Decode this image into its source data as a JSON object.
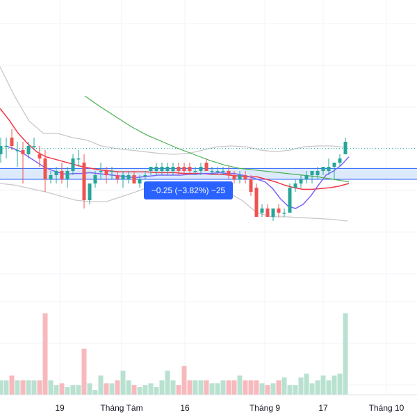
{
  "colors": {
    "up": "#26a69a",
    "down": "#ef5350",
    "vol_up": "#b9e1d0",
    "vol_down": "#f7b9bd",
    "ma_red": "#f23645",
    "ma_green": "#4caf50",
    "ma_blue": "#7b61ff",
    "band": "#c8c8c8",
    "range_fill": "#d6e6fb",
    "range_line": "#2962ff",
    "dotted": "#26a69a",
    "grid": "#f0f3fa"
  },
  "measure_badge": {
    "text": "−0.25 (−3.82%) −25"
  },
  "chart_data": {
    "type": "candlestick",
    "x_ticks": [
      "19",
      "Tháng Tám",
      "16",
      "Tháng 9",
      "17",
      "Tháng 10"
    ],
    "y_range": [
      5.0,
      8.6
    ],
    "volume_range": [
      0,
      100
    ],
    "candles": [
      [
        6.75,
        6.95,
        6.65,
        6.85
      ],
      [
        6.85,
        6.95,
        6.7,
        6.85
      ],
      [
        6.95,
        7.05,
        6.8,
        6.85
      ],
      [
        6.8,
        6.9,
        6.6,
        6.8
      ],
      [
        6.8,
        6.9,
        6.4,
        6.75
      ],
      [
        6.75,
        6.9,
        6.7,
        6.85
      ],
      [
        6.85,
        6.95,
        6.8,
        6.85
      ],
      [
        6.75,
        6.85,
        6.6,
        6.7
      ],
      [
        6.7,
        6.8,
        6.3,
        6.45
      ],
      [
        6.45,
        6.55,
        6.4,
        6.5
      ],
      [
        6.5,
        6.6,
        6.4,
        6.55
      ],
      [
        6.55,
        6.65,
        6.4,
        6.45
      ],
      [
        6.45,
        6.6,
        6.35,
        6.55
      ],
      [
        6.55,
        6.75,
        6.5,
        6.7
      ],
      [
        6.7,
        6.8,
        6.6,
        6.7
      ],
      [
        6.65,
        6.75,
        6.1,
        6.2
      ],
      [
        6.2,
        6.4,
        6.15,
        6.4
      ],
      [
        6.4,
        6.55,
        6.35,
        6.5
      ],
      [
        6.55,
        6.65,
        6.45,
        6.55
      ],
      [
        6.55,
        6.6,
        6.4,
        6.5
      ],
      [
        6.55,
        6.6,
        6.45,
        6.55
      ],
      [
        6.5,
        6.55,
        6.4,
        6.45
      ],
      [
        6.45,
        6.55,
        6.35,
        6.5
      ],
      [
        6.45,
        6.55,
        6.4,
        6.5
      ],
      [
        6.5,
        6.55,
        6.4,
        6.4
      ],
      [
        6.4,
        6.5,
        6.35,
        6.45
      ],
      [
        6.5,
        6.55,
        6.45,
        6.5
      ],
      [
        6.55,
        6.6,
        6.5,
        6.6
      ],
      [
        6.55,
        6.65,
        6.5,
        6.6
      ],
      [
        6.55,
        6.65,
        6.5,
        6.6
      ],
      [
        6.55,
        6.65,
        6.5,
        6.6
      ],
      [
        6.55,
        6.65,
        6.5,
        6.6
      ],
      [
        6.6,
        6.65,
        6.5,
        6.55
      ],
      [
        6.6,
        6.65,
        6.5,
        6.55
      ],
      [
        6.6,
        6.65,
        6.5,
        6.55
      ],
      [
        6.55,
        6.6,
        6.5,
        6.55
      ],
      [
        6.55,
        6.65,
        6.5,
        6.6
      ],
      [
        6.65,
        6.7,
        6.55,
        6.55
      ],
      [
        6.55,
        6.6,
        6.5,
        6.55
      ],
      [
        6.55,
        6.6,
        6.5,
        6.55
      ],
      [
        6.55,
        6.6,
        6.5,
        6.55
      ],
      [
        6.55,
        6.6,
        6.45,
        6.5
      ],
      [
        6.5,
        6.55,
        6.4,
        6.45
      ],
      [
        6.45,
        6.55,
        6.4,
        6.5
      ],
      [
        6.5,
        6.55,
        6.4,
        6.45
      ],
      [
        6.45,
        6.5,
        6.25,
        6.3
      ],
      [
        6.35,
        6.4,
        6.0,
        6.0
      ],
      [
        6.05,
        6.15,
        6.0,
        6.1
      ],
      [
        6.1,
        6.15,
        6.0,
        6.0
      ],
      [
        6.0,
        6.1,
        5.95,
        6.1
      ],
      [
        6.1,
        6.15,
        6.0,
        6.05
      ],
      [
        6.05,
        6.1,
        6.0,
        6.05
      ],
      [
        6.05,
        6.4,
        6.05,
        6.35
      ],
      [
        6.35,
        6.45,
        6.3,
        6.4
      ],
      [
        6.4,
        6.5,
        6.35,
        6.45
      ],
      [
        6.45,
        6.55,
        6.4,
        6.5
      ],
      [
        6.5,
        6.55,
        6.4,
        6.55
      ],
      [
        6.5,
        6.6,
        6.45,
        6.55
      ],
      [
        6.55,
        6.6,
        6.5,
        6.6
      ],
      [
        6.55,
        6.7,
        6.5,
        6.6
      ],
      [
        6.6,
        6.65,
        6.45,
        6.65
      ],
      [
        6.65,
        6.75,
        6.6,
        6.7
      ],
      [
        6.75,
        6.95,
        6.75,
        6.9
      ]
    ],
    "volume": [
      15,
      15,
      20,
      15,
      15,
      15,
      15,
      15,
      85,
      15,
      10,
      12,
      8,
      10,
      10,
      48,
      12,
      5,
      20,
      12,
      12,
      15,
      25,
      15,
      10,
      8,
      10,
      12,
      8,
      15,
      25,
      15,
      10,
      30,
      15,
      15,
      15,
      15,
      12,
      12,
      15,
      15,
      15,
      20,
      15,
      15,
      15,
      12,
      10,
      12,
      15,
      18,
      10,
      10,
      18,
      22,
      12,
      15,
      20,
      15,
      20,
      22,
      85
    ],
    "range_band": [
      6.45,
      6.58
    ],
    "reference_level": 6.82,
    "ma_fast": [
      6.85,
      6.82,
      6.78,
      6.72,
      6.66,
      6.6,
      6.56,
      6.53,
      6.51,
      6.52,
      6.52,
      6.53,
      6.52,
      6.51,
      6.5,
      6.49,
      6.48,
      6.47,
      6.48,
      6.49,
      6.5,
      6.5,
      6.5,
      6.5,
      6.51,
      6.51,
      6.52,
      6.52,
      6.53,
      6.52,
      6.52,
      6.5,
      6.48,
      6.45,
      6.42,
      6.34,
      6.22,
      6.13,
      6.1,
      6.15,
      6.25,
      6.38,
      6.5,
      6.55,
      6.62,
      6.72
    ],
    "ma_slow": [
      7.3,
      7.16,
      7.0,
      6.88,
      6.78,
      6.72,
      6.69,
      6.66,
      6.63,
      6.6,
      6.58,
      6.56,
      6.55,
      6.54,
      6.54,
      6.54,
      6.54,
      6.53,
      6.53,
      6.53,
      6.52,
      6.52,
      6.52,
      6.51,
      6.51,
      6.5,
      6.49,
      6.48,
      6.48,
      6.45,
      6.42,
      6.38,
      6.35,
      6.33,
      6.33,
      6.34,
      6.35,
      6.37,
      6.4
    ],
    "ma_long": [
      7.45,
      7.32,
      7.2,
      7.08,
      6.98,
      6.9,
      6.82,
      6.75,
      6.68,
      6.62,
      6.58,
      6.56,
      6.54,
      6.52,
      6.5,
      6.48,
      6.45,
      6.42
    ],
    "bollinger_upper": [
      7.8,
      7.45,
      7.15,
      7.0,
      7.0,
      6.95,
      6.92,
      6.85,
      6.82,
      6.8,
      6.78,
      6.76,
      6.75,
      6.76,
      6.8,
      6.84,
      6.85,
      6.84,
      6.8,
      6.78,
      6.8,
      6.84,
      6.85,
      6.85,
      6.83
    ],
    "bollinger_lower": [
      6.4,
      6.38,
      6.34,
      6.3,
      6.25,
      6.2,
      6.18,
      6.18,
      6.24,
      6.3,
      6.37,
      6.4,
      6.42,
      6.4,
      6.36,
      6.3,
      6.2,
      6.05,
      6.0,
      6.0,
      5.99,
      5.98,
      5.97,
      5.95
    ]
  }
}
